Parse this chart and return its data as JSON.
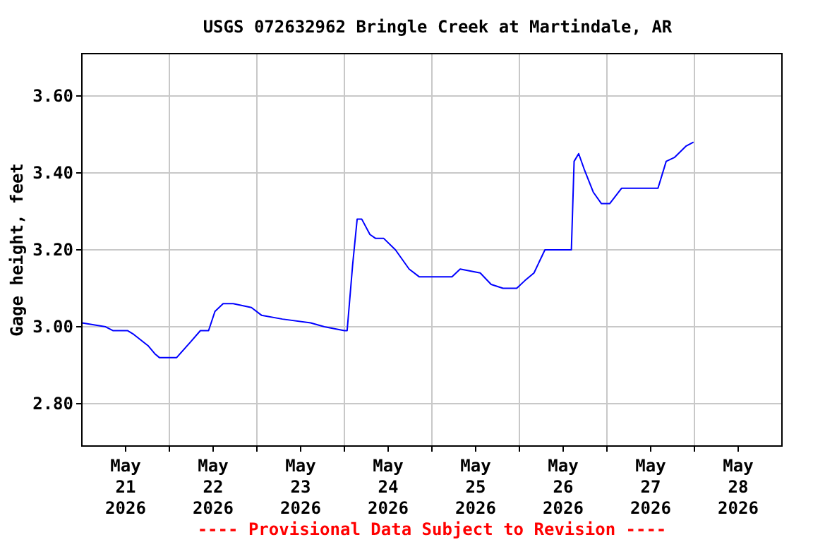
{
  "chart_data": {
    "type": "line",
    "title": "USGS 072632962 Bringle Creek at Martindale, AR",
    "ylabel": "Gage height, feet",
    "annotations": [
      "---- Provisional Data Subject to Revision ----"
    ],
    "x": [
      "2026-05-21T00:00",
      "2026-05-21T06:30",
      "2026-05-21T08:30",
      "2026-05-21T12:30",
      "2026-05-21T14:15",
      "2026-05-21T18:15",
      "2026-05-21T20:00",
      "2026-05-21T21:15",
      "2026-05-22T02:00",
      "2026-05-22T05:45",
      "2026-05-22T08:30",
      "2026-05-22T10:45",
      "2026-05-22T12:30",
      "2026-05-22T14:45",
      "2026-05-22T17:30",
      "2026-05-22T22:30",
      "2026-05-23T01:15",
      "2026-05-23T07:00",
      "2026-05-23T14:45",
      "2026-05-23T18:30",
      "2026-05-24T00:00",
      "2026-05-24T00:45",
      "2026-05-24T02:15",
      "2026-05-24T03:30",
      "2026-05-24T04:45",
      "2026-05-24T07:00",
      "2026-05-24T08:30",
      "2026-05-24T10:45",
      "2026-05-24T14:00",
      "2026-05-24T17:45",
      "2026-05-24T20:30",
      "2026-05-25T05:30",
      "2026-05-25T07:45",
      "2026-05-25T13:15",
      "2026-05-25T16:15",
      "2026-05-25T19:30",
      "2026-05-25T23:15",
      "2026-05-26T01:30",
      "2026-05-26T04:00",
      "2026-05-26T07:00",
      "2026-05-26T14:15",
      "2026-05-26T15:00",
      "2026-05-26T16:15",
      "2026-05-26T17:45",
      "2026-05-26T20:15",
      "2026-05-26T22:30",
      "2026-05-27T00:45",
      "2026-05-27T04:00",
      "2026-05-27T11:45",
      "2026-05-27T14:00",
      "2026-05-27T16:15",
      "2026-05-27T18:30",
      "2026-05-27T21:45",
      "2026-05-27T23:45"
    ],
    "series": [
      {
        "color": "#0000ff",
        "values": [
          3.01,
          3.0,
          2.99,
          2.99,
          2.98,
          2.95,
          2.93,
          2.92,
          2.92,
          2.96,
          2.99,
          2.99,
          3.04,
          3.06,
          3.06,
          3.05,
          3.03,
          3.02,
          3.01,
          3.0,
          2.99,
          2.99,
          3.16,
          3.28,
          3.28,
          3.24,
          3.23,
          3.23,
          3.2,
          3.15,
          3.13,
          3.13,
          3.15,
          3.14,
          3.11,
          3.1,
          3.1,
          3.12,
          3.14,
          3.2,
          3.2,
          3.43,
          3.45,
          3.41,
          3.35,
          3.32,
          3.32,
          3.36,
          3.36,
          3.36,
          3.43,
          3.44,
          3.47,
          3.48
        ]
      }
    ],
    "xlim": [
      "2026-05-21",
      "2026-05-29"
    ],
    "xticks": [
      {
        "value": "2026-05-21T12:00",
        "label": "May\n21\n2026"
      },
      {
        "value": "2026-05-22T12:00",
        "label": "May\n22\n2026"
      },
      {
        "value": "2026-05-23T12:00",
        "label": "May\n23\n2026"
      },
      {
        "value": "2026-05-24T12:00",
        "label": "May\n24\n2026"
      },
      {
        "value": "2026-05-25T12:00",
        "label": "May\n25\n2026"
      },
      {
        "value": "2026-05-26T12:00",
        "label": "May\n26\n2026"
      },
      {
        "value": "2026-05-27T12:00",
        "label": "May\n27\n2026"
      },
      {
        "value": "2026-05-28T12:00",
        "label": "May\n28\n2026"
      },
      {
        "value": "2026-05-22",
        "label": null
      },
      {
        "value": "2026-05-23",
        "label": null
      },
      {
        "value": "2026-05-24",
        "label": null
      },
      {
        "value": "2026-05-25",
        "label": null
      },
      {
        "value": "2026-05-26",
        "label": null
      },
      {
        "value": "2026-05-27",
        "label": null
      },
      {
        "value": "2026-05-28",
        "label": null
      }
    ],
    "ylim": [
      2.69,
      3.71
    ],
    "yticks": [
      {
        "value": 2.8,
        "label": "2.80"
      },
      {
        "value": 3.0,
        "label": "3.00"
      },
      {
        "value": 3.2,
        "label": "3.20"
      },
      {
        "value": 3.4,
        "label": "3.40"
      },
      {
        "value": 3.6,
        "label": "3.60"
      }
    ],
    "grid": true,
    "marker": "none",
    "line_style": "solid"
  }
}
